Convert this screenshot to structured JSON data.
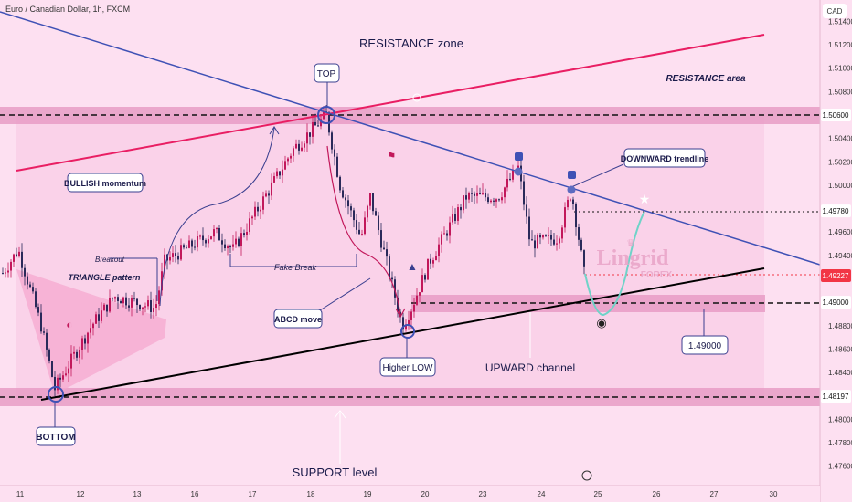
{
  "header": {
    "title": "Euro / Canadian Dollar, 1h, FXCM",
    "currency": "CAD"
  },
  "chart_data": {
    "type": "candlestick",
    "symbol": "Euro / Canadian Dollar",
    "interval": "1h",
    "source": "FXCM",
    "y_axis_ticks": [
      "1.51400",
      "1.51200",
      "1.51000",
      "1.50800",
      "1.50400",
      "1.50200",
      "1.50000",
      "1.49600",
      "1.49400",
      "1.48800",
      "1.48600",
      "1.48400",
      "1.48000",
      "1.47800",
      "1.47600"
    ],
    "x_axis_ticks": [
      "11",
      "12",
      "13",
      "16",
      "17",
      "18",
      "19",
      "20",
      "23",
      "24",
      "25",
      "26",
      "27",
      "30"
    ],
    "price_badges": [
      {
        "label": "1.50600",
        "color": "#ffffff"
      },
      {
        "label": "1.49780",
        "color": "#ffffff"
      },
      {
        "label": "1.49227",
        "color": "#f23645"
      },
      {
        "label": "1.49000",
        "color": "#ffffff"
      },
      {
        "label": "1.48197",
        "color": "#ffffff"
      }
    ],
    "horizontal_levels": [
      1.506,
      1.4978,
      1.49,
      1.48197
    ],
    "last_price": 1.49227,
    "colors": {
      "up": "#c2185b",
      "down": "#2a2a5a",
      "resistance_line": "#e91e63",
      "trendline": "#3f51b5",
      "channel": "#000000",
      "zone": "#e79cc6"
    }
  },
  "annotations": {
    "resistance_zone": "RESISTANCE zone",
    "resistance_area": "RESISTANCE area",
    "top": "TOP",
    "bullish_momentum": "BULLISH momentum",
    "breakout": "Breakout",
    "triangle_pattern": "TRIANGLE pattern",
    "fake_break": "Fake Break",
    "abcd_move": "ABCD move",
    "higher_low": "Higher LOW",
    "upward_channel": "UPWARD channel",
    "downward_trendline": "DOWNWARD trendline",
    "level_callout": "1.49000",
    "bottom": "BOTTOM",
    "support_level": "SUPPORT level",
    "brand": "Lingrid",
    "brand_sub": "FOREX"
  }
}
